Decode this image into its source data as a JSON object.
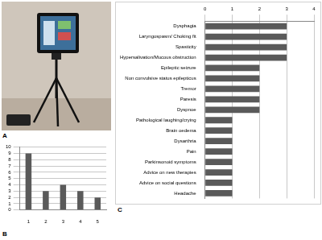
{
  "photo": {
    "label": "A"
  },
  "chart_data": [
    {
      "type": "bar",
      "title": "B",
      "categories": [
        "1",
        "2",
        "3",
        "4",
        "5"
      ],
      "values": [
        9,
        3,
        4,
        3,
        2
      ],
      "color": "#5a5a5a",
      "ylim": [
        0,
        10
      ],
      "yticks": [
        0,
        1,
        2,
        3,
        4,
        5,
        6,
        7,
        8,
        9,
        10
      ],
      "grid": true
    },
    {
      "type": "bar",
      "title": "C",
      "orientation": "horizontal",
      "categories": [
        "Dysphagia",
        "Laryngospasm/ Choking fit",
        "Spasticity",
        "Hypersalivation/Mucous obstruction",
        "Epileptic seizure",
        "Non convulsive status epilepticus",
        "Tremor",
        "Paresis",
        "Dyspnoe",
        "Pathological laughing/crying",
        "Brain oedema",
        "Dysarthria",
        "Pain",
        "Parkinsonoid symptoms",
        "Advice on new therapies",
        "Advice on social questions",
        "Headache"
      ],
      "values": [
        3,
        3,
        3,
        3,
        2,
        2,
        2,
        2,
        2,
        1,
        1,
        1,
        1,
        1,
        1,
        1,
        1
      ],
      "color": "#5a5a5a",
      "xlim": [
        0,
        4
      ],
      "xticks": [
        0,
        1,
        2,
        3,
        4
      ],
      "grid": true
    }
  ]
}
